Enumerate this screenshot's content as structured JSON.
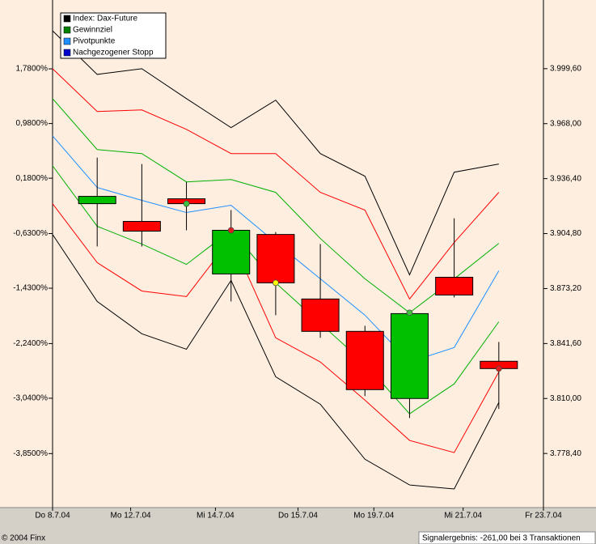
{
  "chart_data": {
    "type": "candlestick",
    "legend": [
      {
        "name": "Index: Dax-Future",
        "color": "#000000"
      },
      {
        "name": "Gewinnziel",
        "color": "#008000"
      },
      {
        "name": "Pivotpunkte",
        "color": "#1e90ff"
      },
      {
        "name": "Nachgezogener Stopp",
        "color": "#0000cc"
      }
    ],
    "xlim": [
      -1,
      10
    ],
    "xticks": [
      {
        "value": -1,
        "label": "Do 8.7.04"
      },
      {
        "value": 0.75,
        "label": "Mo 12.7.04"
      },
      {
        "value": 2.65,
        "label": "Mi 14.7.04"
      },
      {
        "value": 4.5,
        "label": "Do 15.7.04"
      },
      {
        "value": 6.2,
        "label": "Mo 19.7.04"
      },
      {
        "value": 8.2,
        "label": "Mi 21.7.04"
      },
      {
        "value": 10,
        "label": "Fr 23.7.04"
      }
    ],
    "ylim": [
      -4.64,
      2.61
    ],
    "yticks": [
      {
        "value": 1.78,
        "label": "1,7800%"
      },
      {
        "value": 0.98,
        "label": "0,9800%"
      },
      {
        "value": 0.18,
        "label": "0,1800%"
      },
      {
        "value": -0.63,
        "label": "-0,6300%"
      },
      {
        "value": -1.43,
        "label": "-1,4300%"
      },
      {
        "value": -2.24,
        "label": "-2,2400%"
      },
      {
        "value": -3.04,
        "label": "-3,0400%"
      },
      {
        "value": -3.85,
        "label": "-3,8500%"
      }
    ],
    "y2lim": [
      3747.3,
      4032.1
    ],
    "y2ticks": [
      {
        "value": 3999.6,
        "label": "3.999,60"
      },
      {
        "value": 3968.0,
        "label": "3.968,00"
      },
      {
        "value": 3936.4,
        "label": "3.936,40"
      },
      {
        "value": 3904.8,
        "label": "3.904,80"
      },
      {
        "value": 3873.2,
        "label": "3.873,20"
      },
      {
        "value": 3841.6,
        "label": "3.841,60"
      },
      {
        "value": 3810.0,
        "label": "3.810,00"
      },
      {
        "value": 3778.4,
        "label": "3.778,40"
      }
    ],
    "up_color": "#00c000",
    "down_color": "#ff0000",
    "candles": {
      "x": [
        0,
        1,
        2,
        3,
        4,
        5,
        6,
        7,
        8,
        9
      ],
      "open": [
        3922.0,
        3911.8,
        3924.8,
        3881.6,
        3904.3,
        3867.2,
        3848.6,
        3810.0,
        3879.7,
        3831.4
      ],
      "high": [
        3948.5,
        3944.8,
        3934.5,
        3918.3,
        3905.7,
        3898.8,
        3851.8,
        3859.7,
        3913.6,
        3842.5
      ],
      "low": [
        3897.4,
        3897.4,
        3906.7,
        3865.8,
        3857.9,
        3844.9,
        3811.4,
        3798.8,
        3868.1,
        3804.0
      ],
      "close": [
        3926.2,
        3906.2,
        3922.0,
        3906.7,
        3876.5,
        3848.6,
        3815.1,
        3858.8,
        3869.5,
        3827.2
      ]
    },
    "lines": {
      "x": [
        -1,
        0,
        1,
        2,
        3,
        4,
        5,
        6,
        7,
        8,
        9
      ],
      "series": [
        {
          "color": "#000000",
          "axis": "y2",
          "values": [
            4021.4,
            3996.3,
            3999.6,
            3982.4,
            3965.7,
            3981.5,
            3950.8,
            3937.8,
            3881.1,
            3940.1,
            3944.8
          ]
        },
        {
          "color": "#ff0000",
          "axis": "y2",
          "values": [
            3999.6,
            3975.0,
            3975.9,
            3964.7,
            3950.8,
            3950.8,
            3928.5,
            3918.3,
            3867.2,
            3899.7,
            3928.5
          ]
        },
        {
          "color": "#00b000",
          "axis": "y2",
          "values": [
            3982.4,
            3953.1,
            3950.8,
            3934.5,
            3935.9,
            3928.5,
            3902.0,
            3878.8,
            3859.3,
            3878.8,
            3899.2
          ]
        },
        {
          "color": "#1e90ff",
          "axis": "y2",
          "values": [
            3961.0,
            3931.3,
            3923.9,
            3916.9,
            3921.1,
            3899.7,
            3878.8,
            3857.9,
            3831.0,
            3839.3,
            3883.4
          ]
        },
        {
          "color": "#00b000",
          "axis": "y2",
          "values": [
            3943.8,
            3909.0,
            3898.8,
            3887.1,
            3906.7,
            3876.5,
            3853.2,
            3830.0,
            3801.2,
            3818.4,
            3854.1
          ]
        },
        {
          "color": "#ff0000",
          "axis": "y2",
          "values": [
            3922.0,
            3888.1,
            3871.8,
            3868.6,
            3902.0,
            3844.9,
            3831.0,
            3809.1,
            3785.9,
            3778.9,
            3825.3
          ]
        },
        {
          "color": "#000000",
          "axis": "y2",
          "values": [
            3904.3,
            3865.8,
            3847.2,
            3838.3,
            3877.9,
            3822.5,
            3806.7,
            3775.1,
            3760.3,
            3758.0,
            3807.7
          ]
        }
      ]
    },
    "markers": {
      "x": [
        2,
        3,
        4,
        7,
        9
      ],
      "values": [
        3922.0,
        3906.7,
        3876.5,
        3859.3,
        3827.2
      ],
      "colors": [
        "#40c040",
        "#e02020",
        "#ffff00",
        "#40c040",
        "#e02020"
      ]
    },
    "footer_left": "© 2004 Finx",
    "footer_right": "Signalergebnis: -261,00 bei 3 Transaktionen"
  }
}
